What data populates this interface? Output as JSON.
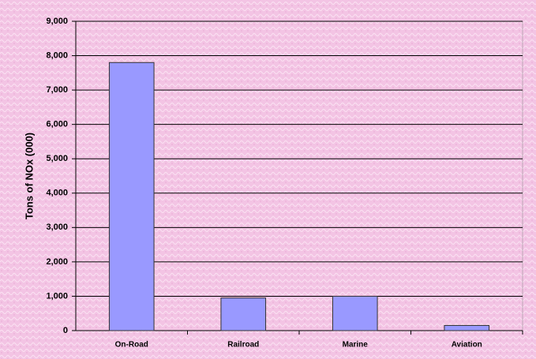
{
  "chart_data": {
    "type": "bar",
    "y_label": "Tons of NOx (000)",
    "categories": [
      "On-Road",
      "Railroad",
      "Marine",
      "Aviation"
    ],
    "values": [
      7800,
      950,
      1000,
      150
    ],
    "color": "#9999ff",
    "ylim": [
      0,
      9000
    ],
    "yticks": [
      0,
      {
        "value": 1000,
        "label": "1,000"
      },
      {
        "value": 2000,
        "label": "2,000"
      },
      {
        "value": 3000,
        "label": "3,000"
      },
      {
        "value": 4000,
        "label": "4,000"
      },
      {
        "value": 5000,
        "label": "5,000"
      },
      {
        "value": 6000,
        "label": "6,000"
      },
      {
        "value": 7000,
        "label": "7,000"
      },
      {
        "value": 8000,
        "label": "8,000"
      },
      {
        "value": 9000,
        "label": "9,000"
      }
    ],
    "grid": true
  }
}
